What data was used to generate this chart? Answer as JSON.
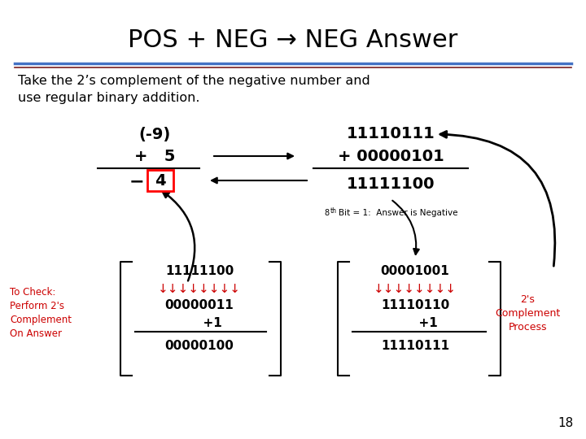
{
  "title": "POS + NEG → NEG Answer",
  "title_fontsize": 22,
  "title_color": "#000000",
  "bg_color": "#ffffff",
  "subtitle": "Take the 2’s complement of the negative number and\nuse regular binary addition.",
  "subtitle_fontsize": 11.5,
  "divider_color_top": "#4472c4",
  "divider_color_bottom": "#7b2020",
  "page_number": "18",
  "mono_font": "Courier New",
  "arrow_color": "#000000",
  "red_color": "#cc0000"
}
